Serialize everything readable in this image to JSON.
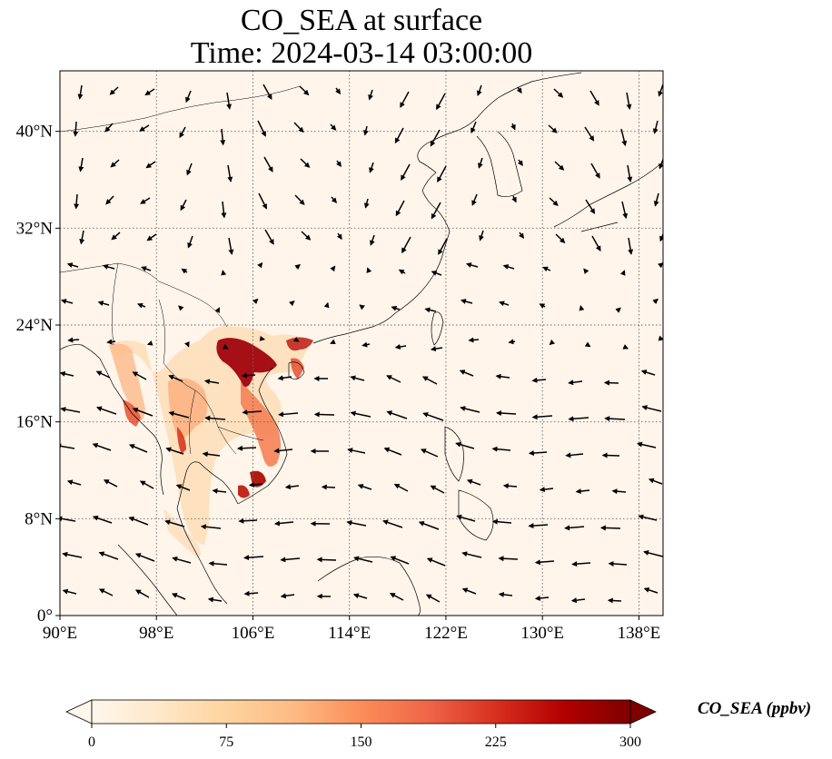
{
  "title": {
    "line1": "CO_SEA at surface",
    "line2": "Time: 2024-03-14 03:00:00"
  },
  "map": {
    "lon_range": [
      90,
      140
    ],
    "lat_range": [
      0,
      45
    ],
    "lon_ticks": [
      {
        "value": 90,
        "label": "90°E"
      },
      {
        "value": 98,
        "label": "98°E"
      },
      {
        "value": 106,
        "label": "106°E"
      },
      {
        "value": 114,
        "label": "114°E"
      },
      {
        "value": 122,
        "label": "122°E"
      },
      {
        "value": 130,
        "label": "130°E"
      },
      {
        "value": 138,
        "label": "138°E"
      }
    ],
    "lat_ticks": [
      {
        "value": 0,
        "label": "0°"
      },
      {
        "value": 8,
        "label": "8°N"
      },
      {
        "value": 16,
        "label": "16°N"
      },
      {
        "value": 24,
        "label": "24°N"
      },
      {
        "value": 32,
        "label": "32°N"
      },
      {
        "value": 40,
        "label": "40°N"
      }
    ],
    "gridlines": true,
    "background_color": "#fff5eb"
  },
  "colorbar": {
    "title": "CO_SEA (ppbv)",
    "min": 0,
    "max": 300,
    "extend": "both",
    "colormap": "OrRd",
    "stops": [
      "#fff7ec",
      "#fee8c8",
      "#fdd49e",
      "#fdbb84",
      "#fc8d59",
      "#ef6548",
      "#d7301f",
      "#b30000",
      "#7f0000"
    ],
    "ticks": [
      {
        "value": 0,
        "label": "0"
      },
      {
        "value": 75,
        "label": "75"
      },
      {
        "value": 150,
        "label": "150"
      },
      {
        "value": 225,
        "label": "225"
      },
      {
        "value": 300,
        "label": "300"
      }
    ]
  }
}
